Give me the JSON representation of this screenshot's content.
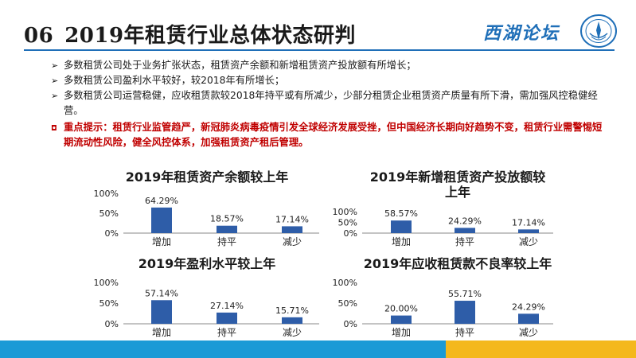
{
  "header": {
    "number": "06",
    "title": "2019年租赁行业总体状态研判",
    "logo_text": "西湖论坛",
    "accent_color": "#1f6fb8"
  },
  "bullets": [
    {
      "marker": "➢",
      "text": "多数租赁公司处于业务扩张状态，租赁资产余额和新增租赁资产投放额有所增长；"
    },
    {
      "marker": "➢",
      "text": "多数租赁公司盈利水平较好，较2018年有所增长；"
    },
    {
      "marker": "➢",
      "text": "多数租赁公司运营稳健，应收租赁款较2018年持平或有所减少，少部分租赁企业租赁资产质量有所下滑，需加强风控稳健经营。"
    },
    {
      "marker": "◘",
      "text": "重点提示：租赁行业监管趋严，新冠肺炎病毒疫情引发全球经济发展受挫，但中国经济长期向好趋势不变，租赁行业需警惕短期流动性风险，健全风控体系，加强租赁资产租后管理。",
      "highlight_color": "#c00000"
    }
  ],
  "chart_data": [
    {
      "type": "bar",
      "title": "2019年租赁资产余额较上年",
      "categories": [
        "增加",
        "持平",
        "减少"
      ],
      "values": [
        64.29,
        18.57,
        17.14
      ],
      "data_labels": [
        "64.29%",
        "18.57%",
        "17.14%"
      ],
      "ylim": [
        0,
        100
      ],
      "yticks": [
        "0%",
        "50%",
        "100%"
      ],
      "bar_color": "#2e5da8",
      "grid": false
    },
    {
      "type": "bar",
      "title": "2019年新增租赁资产投放额较上年",
      "categories": [
        "增加",
        "持平",
        "减少"
      ],
      "values": [
        58.57,
        24.29,
        17.14
      ],
      "data_labels": [
        "58.57%",
        "24.29%",
        "17.14%"
      ],
      "ylim": [
        0,
        100
      ],
      "yticks": [
        "0%",
        "50%",
        "100%"
      ],
      "bar_color": "#2e5da8",
      "grid": false
    },
    {
      "type": "bar",
      "title": "2019年盈利水平较上年",
      "categories": [
        "增加",
        "持平",
        "减少"
      ],
      "values": [
        57.14,
        27.14,
        15.71
      ],
      "data_labels": [
        "57.14%",
        "27.14%",
        "15.71%"
      ],
      "ylim": [
        0,
        100
      ],
      "yticks": [
        "0%",
        "50%",
        "100%"
      ],
      "bar_color": "#2e5da8",
      "grid": false
    },
    {
      "type": "bar",
      "title": "2019年应收租赁款不良率较上年",
      "categories": [
        "增加",
        "持平",
        "减少"
      ],
      "values": [
        20.0,
        55.71,
        24.29
      ],
      "data_labels": [
        "20.00%",
        "55.71%",
        "24.29%"
      ],
      "ylim": [
        0,
        100
      ],
      "yticks": [
        "0%",
        "50%",
        "100%"
      ],
      "bar_color": "#2e5da8",
      "grid": false
    }
  ],
  "footer": {
    "band_colors": [
      "#1b9ad6",
      "#f4b81c"
    ]
  }
}
